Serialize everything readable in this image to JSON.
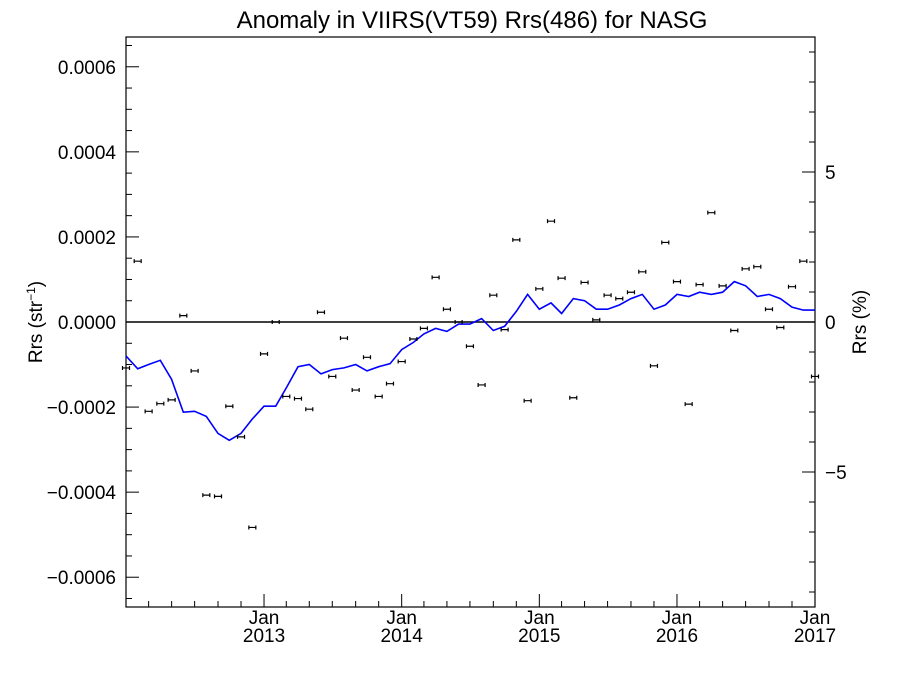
{
  "colors": {
    "line": "#0000ff",
    "points": "#000000",
    "axis": "#000000",
    "background": "#ffffff"
  },
  "chart_data": {
    "type": "line",
    "title": "Anomaly in VIIRS(VT59) Rrs(486) for NASG",
    "ylabel": "Rrs (str",
    "ylabel_sup": "−1",
    "ylabel_close": ")",
    "y2label": "Rrs (%)",
    "xlim": [
      "2012-01-01",
      "2017-01-01"
    ],
    "ylim": [
      -0.00067,
      0.00067
    ],
    "y2lim": [
      -9.5,
      9.5
    ],
    "grid": false,
    "yticks": [
      {
        "value": 0.0006,
        "label": "0.0006"
      },
      {
        "value": 0.0004,
        "label": "0.0004"
      },
      {
        "value": 0.0002,
        "label": "0.0002"
      },
      {
        "value": 0.0,
        "label": "0.0000"
      },
      {
        "value": -0.0002,
        "label": "−0.0002"
      },
      {
        "value": -0.0004,
        "label": "−0.0004"
      },
      {
        "value": -0.0006,
        "label": "−0.0006"
      }
    ],
    "y2ticks": [
      {
        "value": 5,
        "label": "5"
      },
      {
        "value": 0,
        "label": "0"
      },
      {
        "value": -5,
        "label": "−5"
      }
    ],
    "xticks": [
      {
        "value": "2013-01-01",
        "month": "Jan",
        "year": "2013"
      },
      {
        "value": "2014-01-01",
        "month": "Jan",
        "year": "2014"
      },
      {
        "value": "2015-01-01",
        "month": "Jan",
        "year": "2015"
      },
      {
        "value": "2016-01-01",
        "month": "Jan",
        "year": "2016"
      },
      {
        "value": "2017-01-01",
        "month": "Jan",
        "year": "2017"
      }
    ],
    "series": [
      {
        "kind": "line",
        "color": "#0000ff",
        "x": [
          "2012-01-01",
          "2012-02-01",
          "2012-03-01",
          "2012-04-01",
          "2012-05-01",
          "2012-06-01",
          "2012-07-01",
          "2012-08-01",
          "2012-09-01",
          "2012-10-01",
          "2012-11-01",
          "2012-12-01",
          "2013-01-01",
          "2013-02-01",
          "2013-03-01",
          "2013-04-01",
          "2013-05-01",
          "2013-06-01",
          "2013-07-01",
          "2013-08-01",
          "2013-09-01",
          "2013-10-01",
          "2013-11-01",
          "2013-12-01",
          "2014-01-01",
          "2014-02-01",
          "2014-03-01",
          "2014-04-01",
          "2014-05-01",
          "2014-06-01",
          "2014-07-01",
          "2014-08-01",
          "2014-09-01",
          "2014-10-01",
          "2014-11-01",
          "2014-12-01",
          "2015-01-01",
          "2015-02-01",
          "2015-03-01",
          "2015-04-01",
          "2015-05-01",
          "2015-06-01",
          "2015-07-01",
          "2015-08-01",
          "2015-09-01",
          "2015-10-01",
          "2015-11-01",
          "2015-12-01",
          "2016-01-01",
          "2016-02-01",
          "2016-03-01",
          "2016-04-01",
          "2016-05-01",
          "2016-06-01",
          "2016-07-01",
          "2016-08-01",
          "2016-09-01",
          "2016-10-01",
          "2016-11-01",
          "2016-12-01",
          "2017-01-01"
        ],
        "y": [
          -8e-05,
          -0.00011,
          -0.0001,
          -9e-05,
          -0.000135,
          -0.000212,
          -0.00021,
          -0.000222,
          -0.000262,
          -0.000278,
          -0.000262,
          -0.000228,
          -0.000198,
          -0.000198,
          -0.000155,
          -0.000105,
          -0.0001,
          -0.000122,
          -0.000112,
          -0.000108,
          -0.0001,
          -0.000115,
          -0.000105,
          -9.8e-05,
          -6.5e-05,
          -4.8e-05,
          -2.8e-05,
          -1.5e-05,
          -2.2e-05,
          -5e-06,
          -5e-06,
          8e-06,
          -2e-05,
          -1e-05,
          2.5e-05,
          6.5e-05,
          3e-05,
          4.5e-05,
          2e-05,
          5.5e-05,
          5e-05,
          3e-05,
          3e-05,
          4e-05,
          5.5e-05,
          6.5e-05,
          3e-05,
          4e-05,
          6.5e-05,
          6e-05,
          7e-05,
          6.5e-05,
          7e-05,
          9.5e-05,
          8.5e-05,
          6e-05,
          6.5e-05,
          5.5e-05,
          3.5e-05,
          2.8e-05,
          2.8e-05
        ]
      },
      {
        "kind": "points",
        "color": "#000000",
        "x": [
          "2012-01-01",
          "2012-02-01",
          "2012-03-01",
          "2012-04-01",
          "2012-05-01",
          "2012-06-01",
          "2012-07-01",
          "2012-08-01",
          "2012-09-01",
          "2012-10-01",
          "2012-11-01",
          "2012-12-01",
          "2013-01-01",
          "2013-02-01",
          "2013-03-01",
          "2013-04-01",
          "2013-05-01",
          "2013-06-01",
          "2013-07-01",
          "2013-08-01",
          "2013-09-01",
          "2013-10-01",
          "2013-11-01",
          "2013-12-01",
          "2014-01-01",
          "2014-02-01",
          "2014-03-01",
          "2014-04-01",
          "2014-05-01",
          "2014-06-01",
          "2014-07-01",
          "2014-08-01",
          "2014-09-01",
          "2014-10-01",
          "2014-11-01",
          "2014-12-01",
          "2015-01-01",
          "2015-02-01",
          "2015-03-01",
          "2015-04-01",
          "2015-05-01",
          "2015-06-01",
          "2015-07-01",
          "2015-08-01",
          "2015-09-01",
          "2015-10-01",
          "2015-11-01",
          "2015-12-01",
          "2016-01-01",
          "2016-02-01",
          "2016-03-01",
          "2016-04-01",
          "2016-05-01",
          "2016-06-01",
          "2016-07-01",
          "2016-08-01",
          "2016-09-01",
          "2016-10-01",
          "2016-11-01",
          "2016-12-01",
          "2017-01-01"
        ],
        "y": [
          -0.000108,
          0.000143,
          -0.00021,
          -0.000192,
          -0.000183,
          1.5e-05,
          -0.000115,
          -0.000407,
          -0.00041,
          -0.000198,
          -0.00027,
          -0.000483,
          -7.5e-05,
          0.0,
          -0.000175,
          -0.00018,
          -0.000205,
          2.3e-05,
          -0.000128,
          -3.8e-05,
          -0.00016,
          -8.3e-05,
          -0.000175,
          -0.000145,
          -9.3e-05,
          -4e-05,
          -1.5e-05,
          0.000105,
          3e-05,
          0.0,
          -5.7e-05,
          -0.000148,
          6.3e-05,
          -1.8e-05,
          0.000193,
          -0.000185,
          7.8e-05,
          0.000237,
          0.000103,
          -0.000178,
          9.3e-05,
          5e-06,
          6.3e-05,
          5.5e-05,
          7e-05,
          0.000118,
          -0.000103,
          0.000187,
          9.5e-05,
          -0.000193,
          8.8e-05,
          0.000257,
          8.5e-05,
          -2e-05,
          0.000125,
          0.00013,
          3e-05,
          -1.3e-05,
          8.3e-05,
          0.000143,
          -0.000128
        ]
      }
    ]
  }
}
